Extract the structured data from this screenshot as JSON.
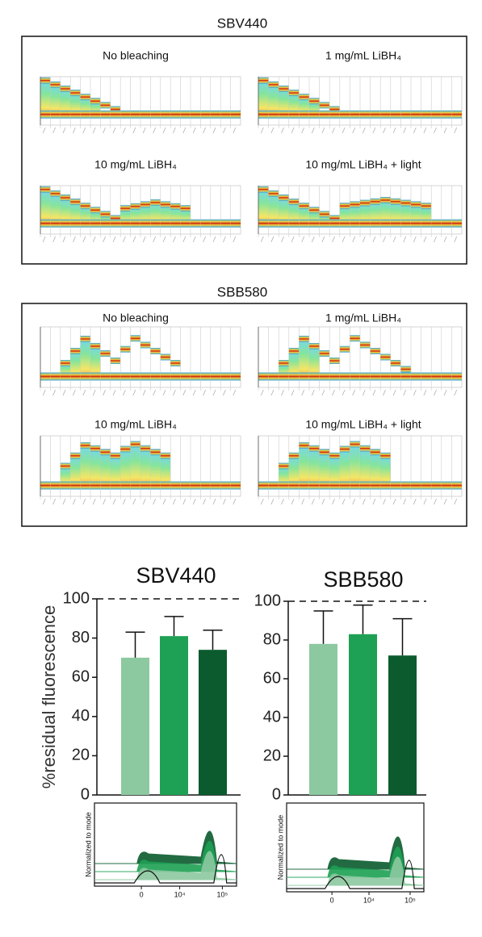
{
  "spectral_figures": [
    {
      "title": "SBV440",
      "panels": [
        "No bleaching",
        "1 mg/mL LiBH₄",
        "10 mg/mL LiBH₄",
        "10 mg/mL LiBH₄ + light"
      ]
    },
    {
      "title": "SBB580",
      "panels": [
        "No bleaching",
        "1 mg/mL LiBH₄",
        "10 mg/mL LiBH₄",
        "10 mg/mL LiBH₄ + light"
      ]
    }
  ],
  "chart_data": [
    {
      "type": "bar",
      "title": "SBV440",
      "ylabel": "%residual fluorescence",
      "values": [
        70,
        81,
        74
      ],
      "errors": [
        13,
        10,
        10
      ],
      "colors": [
        "#8cc9a0",
        "#1ea154",
        "#0b5b2e"
      ],
      "ylim": [
        0,
        100
      ],
      "yticks": [
        0,
        20,
        40,
        60,
        80,
        100
      ],
      "reference_line": 100,
      "histogram": {
        "ylabel": "Normalized to mode",
        "xticks": [
          "0",
          "10⁴",
          "10⁵"
        ]
      }
    },
    {
      "type": "bar",
      "title": "SBB580",
      "values": [
        78,
        83,
        72
      ],
      "errors": [
        17,
        15,
        19
      ],
      "colors": [
        "#8cc9a0",
        "#1ea154",
        "#0b5b2e"
      ],
      "ylim": [
        0,
        100
      ],
      "yticks": [
        0,
        20,
        40,
        60,
        80,
        100
      ],
      "reference_line": 100,
      "histogram": {
        "ylabel": "Normalized to mode",
        "xticks": [
          "0",
          "10⁴",
          "10⁵"
        ]
      }
    }
  ]
}
